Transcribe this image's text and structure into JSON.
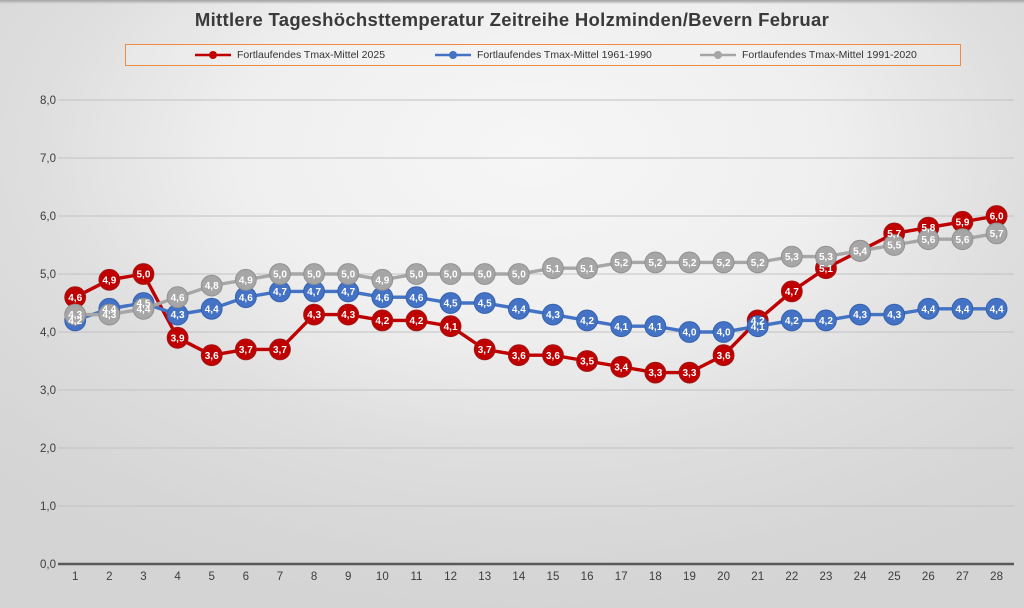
{
  "title": "Mittlere Tageshöchsttemperatur Zeitreihe Holzminden/Bevern Februar",
  "legend": {
    "border_color": "#ED8C42",
    "entries": [
      {
        "label": "Fortlaufendes Tmax-Mittel 2025",
        "color": "#C00000"
      },
      {
        "label": "Fortlaufendes Tmax-Mittel 1961-1990",
        "color": "#4472C4"
      },
      {
        "label": "Fortlaufendes Tmax-Mittel 1991-2020",
        "color": "#A6A6A6"
      }
    ]
  },
  "chart_data": {
    "type": "line",
    "title": "Mittlere Tageshöchsttemperatur Zeitreihe Holzminden/Bevern Februar",
    "xlabel": "",
    "ylabel": "",
    "x": [
      1,
      2,
      3,
      4,
      5,
      6,
      7,
      8,
      9,
      10,
      11,
      12,
      13,
      14,
      15,
      16,
      17,
      18,
      19,
      20,
      21,
      22,
      23,
      24,
      25,
      26,
      27,
      28
    ],
    "xtick_labels": [
      "1",
      "2",
      "3",
      "4",
      "5",
      "6",
      "7",
      "8",
      "9",
      "10",
      "11",
      "12",
      "13",
      "14",
      "15",
      "16",
      "17",
      "18",
      "19",
      "20",
      "21",
      "22",
      "23",
      "24",
      "25",
      "26",
      "27",
      "28"
    ],
    "ylim": [
      0,
      8
    ],
    "ytick_step": 1,
    "ytick_labels": [
      "0,0",
      "1,0",
      "2,0",
      "3,0",
      "4,0",
      "5,0",
      "6,0",
      "7,0",
      "8,0"
    ],
    "grid": true,
    "legend_position": "top",
    "decimal_separator": "comma",
    "marker": "circle-with-centered-value-label",
    "series": [
      {
        "name": "Fortlaufendes Tmax-Mittel 2025",
        "color": "#C00000",
        "edge_color": "#A01818",
        "values": [
          4.6,
          4.9,
          5.0,
          3.9,
          3.6,
          3.7,
          3.7,
          4.3,
          4.3,
          4.2,
          4.2,
          4.1,
          3.7,
          3.6,
          3.6,
          3.5,
          3.4,
          3.3,
          3.3,
          3.6,
          4.2,
          4.7,
          5.1,
          5.4,
          5.7,
          5.8,
          5.9,
          6.0
        ]
      },
      {
        "name": "Fortlaufendes Tmax-Mittel 1961-1990",
        "color": "#4472C4",
        "edge_color": "#3461AE",
        "values": [
          4.2,
          4.4,
          4.5,
          4.3,
          4.4,
          4.6,
          4.7,
          4.7,
          4.7,
          4.6,
          4.6,
          4.5,
          4.5,
          4.4,
          4.3,
          4.2,
          4.1,
          4.1,
          4.0,
          4.0,
          4.1,
          4.2,
          4.2,
          4.3,
          4.3,
          4.4,
          4.4,
          4.4
        ]
      },
      {
        "name": "Fortlaufendes Tmax-Mittel 1991-2020",
        "color": "#A6A6A6",
        "edge_color": "#919191",
        "values": [
          4.3,
          4.3,
          4.4,
          4.6,
          4.8,
          4.9,
          5.0,
          5.0,
          5.0,
          4.9,
          5.0,
          5.0,
          5.0,
          5.0,
          5.1,
          5.1,
          5.2,
          5.2,
          5.2,
          5.2,
          5.2,
          5.3,
          5.3,
          5.4,
          5.5,
          5.6,
          5.6,
          5.7
        ]
      }
    ]
  },
  "axes": {
    "x_axis_color": "#595959",
    "gridline_color": "#C2C2C2",
    "tick_label_color": "#3d3d3d"
  }
}
